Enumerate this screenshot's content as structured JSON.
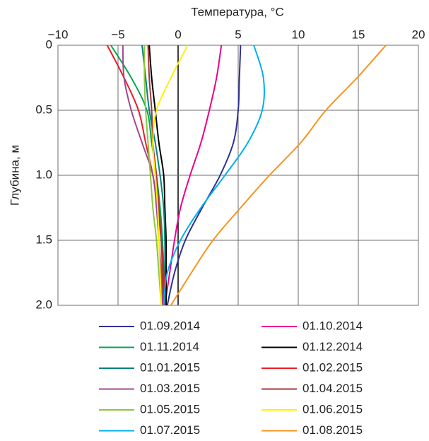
{
  "chart_data": {
    "type": "line",
    "x_label": "Температура, °C",
    "y_label": "Глубина, м",
    "xlim": [
      -10,
      20
    ],
    "xticks": [
      {
        "value": -10,
        "label": "−10"
      },
      {
        "value": -5,
        "label": "−5"
      },
      0,
      5,
      10,
      15,
      20
    ],
    "ylim": [
      0,
      2
    ],
    "yticks": [
      0,
      0.5,
      {
        "value": 1,
        "label": "1.0"
      },
      1.5,
      {
        "value": 2,
        "label": "2.0"
      }
    ],
    "y_inverted": true,
    "x_axis_position": "top",
    "grid": true,
    "y": [
      0,
      0.25,
      0.5,
      0.75,
      1,
      1.25,
      1.5,
      1.75,
      2
    ],
    "series": [
      {
        "name": "01.09.2014",
        "color": "#2e3192",
        "x": [
          5.2,
          5.1,
          5.0,
          4.6,
          3.5,
          2.0,
          0.6,
          -0.3,
          -0.9
        ]
      },
      {
        "name": "01.10.2014",
        "color": "#ec008c",
        "x": [
          3.6,
          3.2,
          2.6,
          1.9,
          1.0,
          0.2,
          -0.3,
          -0.7,
          -1.1
        ]
      },
      {
        "name": "01.11.2014",
        "color": "#00a651",
        "x": [
          -5.6,
          -3.9,
          -2.6,
          -2.2,
          -1.8,
          -1.5,
          -1.3,
          -1.2,
          -1.2
        ]
      },
      {
        "name": "01.12.2014",
        "color": "#000000",
        "x": [
          -2.4,
          -2.2,
          -1.9,
          -1.6,
          -1.2,
          -1.1,
          -1.0,
          -1.0,
          -1.0
        ]
      },
      {
        "name": "01.01.2015",
        "color": "#00827f",
        "x": [
          -3.0,
          -2.7,
          -2.4,
          -1.9,
          -1.5,
          -1.2,
          -1.1,
          -1.1,
          -1.1
        ]
      },
      {
        "name": "01.02.2015",
        "color": "#ed1c24",
        "x": [
          -5.9,
          -4.5,
          -3.3,
          -2.7,
          -2.1,
          -1.7,
          -1.4,
          -1.2,
          -1.1
        ]
      },
      {
        "name": "01.03.2015",
        "color": "#a3488f",
        "x": [
          -4.6,
          -4.5,
          -3.9,
          -3.0,
          -2.1,
          -1.8,
          -1.6,
          -1.4,
          -1.3
        ]
      },
      {
        "name": "01.04.2015",
        "color": "#a6373c",
        "x": [
          -2.5,
          -2.4,
          -2.2,
          -2.1,
          -1.8,
          -1.6,
          -1.4,
          -1.3,
          -1.2
        ]
      },
      {
        "name": "01.05.2015",
        "color": "#8dc63f",
        "x": [
          -2.8,
          -2.8,
          -2.7,
          -2.5,
          -2.3,
          -2.1,
          -1.8,
          -1.6,
          -1.4
        ]
      },
      {
        "name": "01.06.2015",
        "color": "#fff200",
        "x": [
          0.8,
          -0.6,
          -1.8,
          -2.1,
          -1.9,
          -1.7,
          -1.6,
          -1.5,
          -1.4
        ]
      },
      {
        "name": "01.07.2015",
        "color": "#00aeef",
        "x": [
          6.3,
          7.1,
          7.0,
          5.8,
          3.9,
          1.9,
          0.2,
          -0.9,
          -1.2
        ]
      },
      {
        "name": "01.08.2015",
        "color": "#f7941d",
        "x": [
          17.3,
          14.9,
          12.3,
          10.2,
          7.6,
          5.2,
          2.9,
          1.1,
          -0.6
        ]
      }
    ]
  }
}
